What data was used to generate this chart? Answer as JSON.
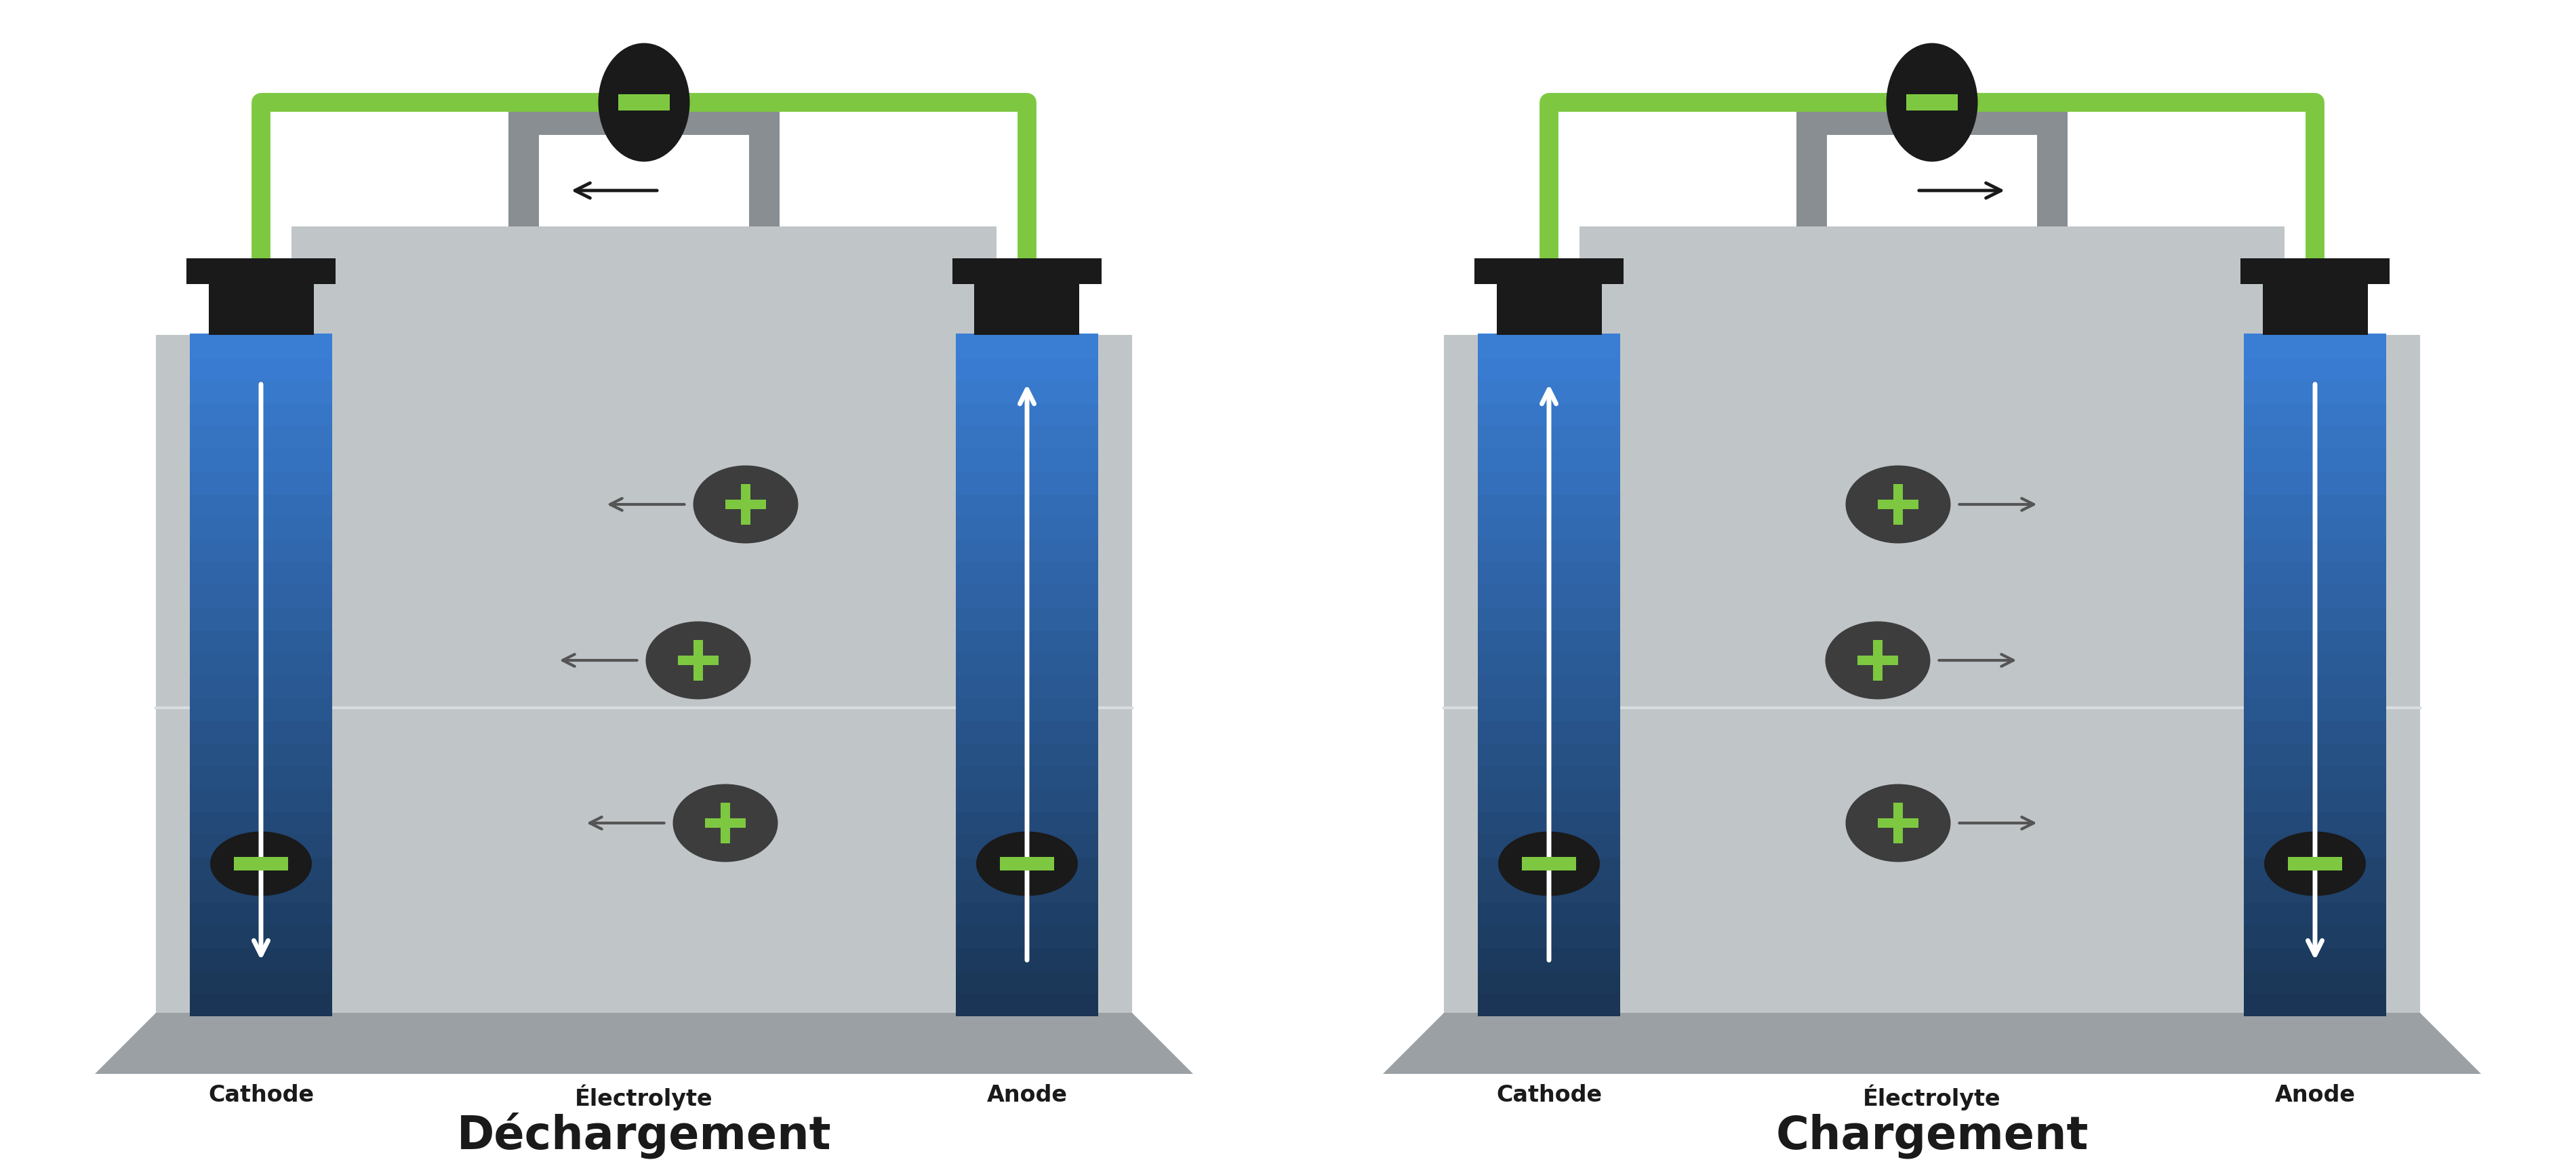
{
  "fig_width": 38.0,
  "fig_height": 17.14,
  "bg_color": "#ffffff",
  "bat_color": "#c0c5c8",
  "bat_dark": "#9aa0a4",
  "bat_darker": "#888e92",
  "green_wire_color": "#7dc840",
  "black_color": "#1a1a1a",
  "ion_bg": "#3d3d3d",
  "ion_plus_color": "#7dc840",
  "title_left": "Déchargement",
  "title_right": "Chargement",
  "label_cathode": "Cathode",
  "label_electrolyte": "Électrolyte",
  "label_anode": "Anode",
  "elec_blue1": "#1a3555",
  "elec_blue2": "#1e3f66",
  "elec_blue3": "#2558a0",
  "elec_blue4": "#2e6ecc",
  "elec_blue5": "#3a7ed4"
}
